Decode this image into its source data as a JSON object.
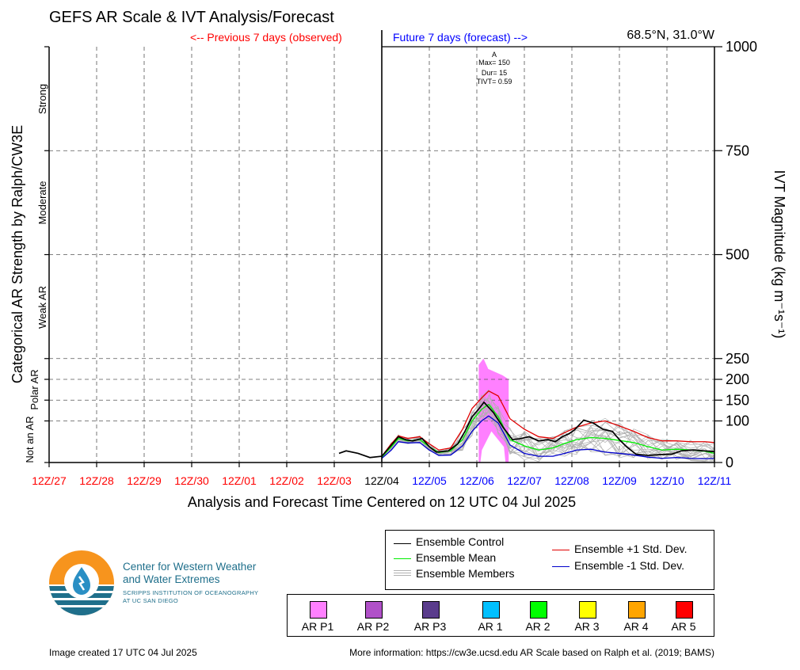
{
  "header": {
    "title": "GEFS AR Scale & IVT Analysis/Forecast",
    "prev_label": "<-- Previous 7 days (observed)",
    "future_label": "Future 7 days (forecast) -->",
    "location": "68.5°N, 31.0°W"
  },
  "colors": {
    "observed": "#ff0000",
    "forecast": "#0000ff",
    "control": "#000000",
    "mean": "#00ee00",
    "plus_sd": "#e00000",
    "minus_sd": "#0000cc",
    "members": "#b0b0b0",
    "ar_p1_shade": "#ff80ff"
  },
  "axes": {
    "y_left_label": "Categorical AR Strength by Ralph/CW3E",
    "y_right_label": "IVT Magnitude (kg m⁻¹s⁻¹)",
    "x_label": "Analysis and Forecast Time Centered on 12 UTC 04 Jul 2025",
    "categories": [
      "Strong",
      "Moderate",
      "Weak AR",
      "Polar AR",
      "Not an AR"
    ]
  },
  "annotation": {
    "letter": "A",
    "max": "Max= 150",
    "dur": "Dur= 15",
    "tivt": "TIVT= 0.59"
  },
  "chart_data": {
    "type": "line",
    "x_ticks": [
      {
        "label": "12Z/27",
        "day": 0,
        "status": "observed"
      },
      {
        "label": "12Z/28",
        "day": 1,
        "status": "observed"
      },
      {
        "label": "12Z/29",
        "day": 2,
        "status": "observed"
      },
      {
        "label": "12Z/30",
        "day": 3,
        "status": "observed"
      },
      {
        "label": "12Z/01",
        "day": 4,
        "status": "observed"
      },
      {
        "label": "12Z/02",
        "day": 5,
        "status": "observed"
      },
      {
        "label": "12Z/03",
        "day": 6,
        "status": "observed"
      },
      {
        "label": "12Z/04",
        "day": 7,
        "status": "current"
      },
      {
        "label": "12Z/05",
        "day": 8,
        "status": "forecast"
      },
      {
        "label": "12Z/06",
        "day": 9,
        "status": "forecast"
      },
      {
        "label": "12Z/07",
        "day": 10,
        "status": "forecast"
      },
      {
        "label": "12Z/08",
        "day": 11,
        "status": "forecast"
      },
      {
        "label": "12Z/09",
        "day": 12,
        "status": "forecast"
      },
      {
        "label": "12Z/10",
        "day": 13,
        "status": "forecast"
      },
      {
        "label": "12Z/11",
        "day": 14,
        "status": "forecast"
      }
    ],
    "y_ticks": [
      0,
      100,
      150,
      200,
      250,
      500,
      750,
      1000
    ],
    "y_range": [
      0,
      1000
    ],
    "ar_period": {
      "start_day": 9.04,
      "end_day": 9.67,
      "top_start": 250,
      "top_end": 200,
      "bottom_peak": 75
    },
    "series": [
      {
        "name": "Ensemble Control",
        "points": [
          [
            6.1,
            22
          ],
          [
            6.25,
            28
          ],
          [
            6.5,
            22
          ],
          [
            6.75,
            12
          ],
          [
            7.0,
            15
          ],
          [
            7.15,
            35
          ],
          [
            7.35,
            62
          ],
          [
            7.5,
            55
          ],
          [
            7.65,
            52
          ],
          [
            7.85,
            58
          ],
          [
            8.0,
            38
          ],
          [
            8.15,
            25
          ],
          [
            8.4,
            28
          ],
          [
            8.6,
            45
          ],
          [
            8.75,
            75
          ],
          [
            8.9,
            110
          ],
          [
            9.05,
            130
          ],
          [
            9.15,
            145
          ],
          [
            9.35,
            120
          ],
          [
            9.55,
            85
          ],
          [
            9.75,
            55
          ],
          [
            9.9,
            57
          ],
          [
            10.1,
            62
          ],
          [
            10.3,
            52
          ],
          [
            10.5,
            55
          ],
          [
            10.65,
            50
          ],
          [
            10.8,
            62
          ],
          [
            10.95,
            70
          ],
          [
            11.05,
            78
          ],
          [
            11.25,
            102
          ],
          [
            11.45,
            95
          ],
          [
            11.65,
            80
          ],
          [
            11.85,
            75
          ],
          [
            12.0,
            55
          ],
          [
            12.15,
            38
          ],
          [
            12.35,
            20
          ],
          [
            12.6,
            17
          ],
          [
            12.85,
            19
          ],
          [
            13.1,
            20
          ],
          [
            13.3,
            28
          ],
          [
            13.55,
            30
          ],
          [
            13.8,
            28
          ],
          [
            14.0,
            26
          ]
        ]
      },
      {
        "name": "Ensemble Mean",
        "points": [
          [
            7.0,
            13
          ],
          [
            7.2,
            38
          ],
          [
            7.35,
            58
          ],
          [
            7.55,
            52
          ],
          [
            7.8,
            55
          ],
          [
            8.0,
            38
          ],
          [
            8.2,
            24
          ],
          [
            8.45,
            28
          ],
          [
            8.7,
            55
          ],
          [
            8.9,
            100
          ],
          [
            9.1,
            128
          ],
          [
            9.25,
            140
          ],
          [
            9.45,
            110
          ],
          [
            9.7,
            55
          ],
          [
            10.0,
            40
          ],
          [
            10.3,
            30
          ],
          [
            10.6,
            35
          ],
          [
            10.85,
            46
          ],
          [
            11.1,
            55
          ],
          [
            11.4,
            60
          ],
          [
            11.7,
            58
          ],
          [
            12.0,
            53
          ],
          [
            12.3,
            48
          ],
          [
            12.6,
            38
          ],
          [
            12.9,
            30
          ],
          [
            13.2,
            32
          ],
          [
            13.5,
            30
          ],
          [
            13.8,
            27
          ],
          [
            14.0,
            22
          ]
        ]
      },
      {
        "name": "Ensemble +1 Std. Dev.",
        "points": [
          [
            7.0,
            15
          ],
          [
            7.2,
            45
          ],
          [
            7.35,
            64
          ],
          [
            7.55,
            58
          ],
          [
            7.8,
            62
          ],
          [
            8.0,
            45
          ],
          [
            8.2,
            30
          ],
          [
            8.45,
            35
          ],
          [
            8.7,
            80
          ],
          [
            8.9,
            130
          ],
          [
            9.1,
            155
          ],
          [
            9.25,
            172
          ],
          [
            9.45,
            160
          ],
          [
            9.7,
            105
          ],
          [
            10.0,
            80
          ],
          [
            10.3,
            62
          ],
          [
            10.6,
            58
          ],
          [
            10.85,
            72
          ],
          [
            11.1,
            85
          ],
          [
            11.4,
            95
          ],
          [
            11.7,
            100
          ],
          [
            12.0,
            88
          ],
          [
            12.3,
            75
          ],
          [
            12.6,
            60
          ],
          [
            12.9,
            52
          ],
          [
            13.2,
            52
          ],
          [
            13.5,
            50
          ],
          [
            13.8,
            50
          ],
          [
            14.0,
            48
          ]
        ]
      },
      {
        "name": "Ensemble -1 Std. Dev.",
        "points": [
          [
            7.0,
            10
          ],
          [
            7.2,
            30
          ],
          [
            7.35,
            50
          ],
          [
            7.55,
            47
          ],
          [
            7.8,
            48
          ],
          [
            8.0,
            30
          ],
          [
            8.2,
            17
          ],
          [
            8.45,
            18
          ],
          [
            8.7,
            40
          ],
          [
            8.9,
            75
          ],
          [
            9.1,
            100
          ],
          [
            9.25,
            112
          ],
          [
            9.45,
            95
          ],
          [
            9.7,
            42
          ],
          [
            10.0,
            22
          ],
          [
            10.3,
            15
          ],
          [
            10.6,
            15
          ],
          [
            10.85,
            22
          ],
          [
            11.1,
            30
          ],
          [
            11.4,
            32
          ],
          [
            11.7,
            25
          ],
          [
            12.0,
            22
          ],
          [
            12.3,
            18
          ],
          [
            12.6,
            13
          ],
          [
            12.9,
            10
          ],
          [
            13.2,
            12
          ],
          [
            13.5,
            10
          ],
          [
            13.8,
            9
          ],
          [
            14.0,
            10
          ]
        ]
      }
    ]
  },
  "legend": {
    "control": "Ensemble Control",
    "mean": "Ensemble Mean",
    "members": "Ensemble Members",
    "plus_sd": "Ensemble +1 Std. Dev.",
    "minus_sd": "Ensemble -1 Std. Dev."
  },
  "scale_legend": [
    {
      "label": "AR P1",
      "color": "#ff80ff"
    },
    {
      "label": "AR P2",
      "color": "#b050c8"
    },
    {
      "label": "AR P3",
      "color": "#5a3c8c"
    },
    {
      "label": "AR 1",
      "color": "#00c0ff"
    },
    {
      "label": "AR 2",
      "color": "#00ff00"
    },
    {
      "label": "AR 3",
      "color": "#ffff00"
    },
    {
      "label": "AR 4",
      "color": "#ffa500"
    },
    {
      "label": "AR 5",
      "color": "#ff0000"
    }
  ],
  "logo": {
    "line1": "Center for Western Weather",
    "line2": "and Water Extremes",
    "line3": "SCRIPPS INSTITUTION OF OCEANOGRAPHY",
    "line4": "AT UC SAN DIEGO"
  },
  "footer": {
    "created": "Image created 17 UTC 04 Jul 2025",
    "more_info": "More information: https://cw3e.ucsd.edu AR Scale based on Ralph et al. (2019; BAMS)"
  }
}
